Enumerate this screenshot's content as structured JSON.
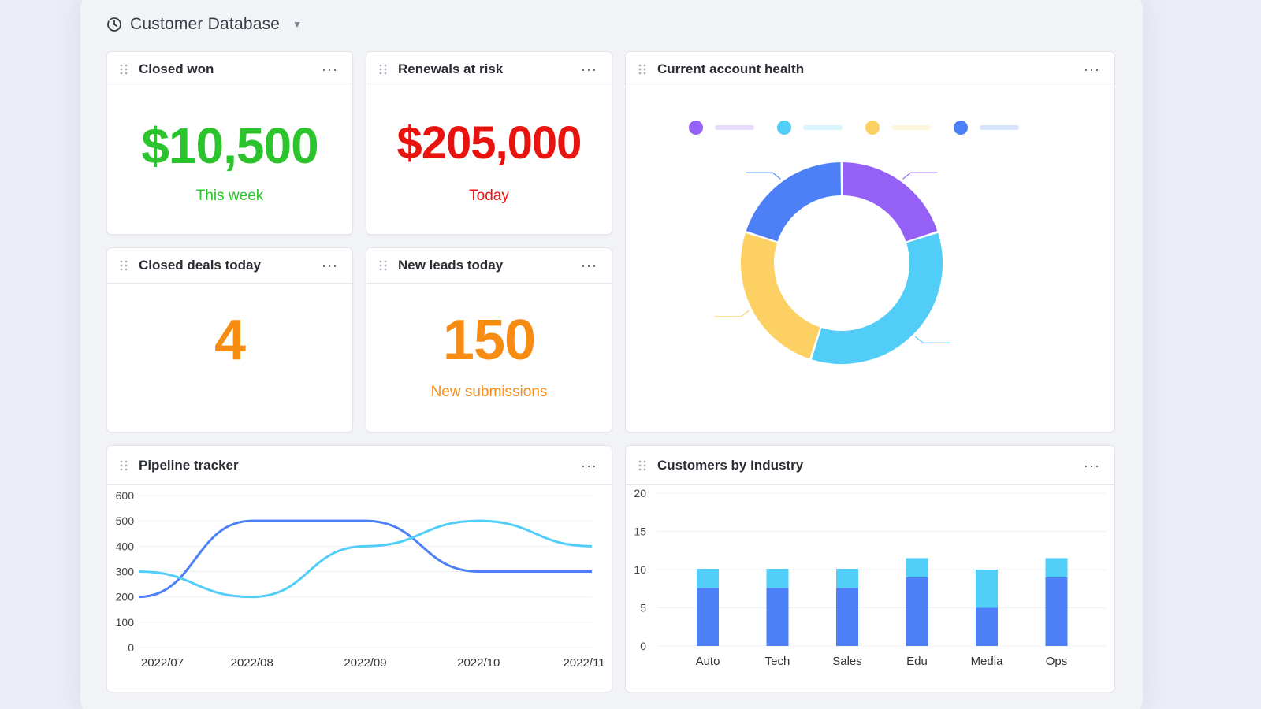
{
  "app": {
    "title": "Customer Database"
  },
  "colors": {
    "green": "#2cc42c",
    "red": "#e8130f",
    "orange": "#f78c12",
    "purple": "#9460f5",
    "cyan": "#52cdf8",
    "yellow": "#fcd063",
    "blue": "#4d80f7"
  },
  "cards": {
    "closed_won": {
      "title": "Closed won",
      "value": "$10,500",
      "sub": "This week"
    },
    "renewals": {
      "title": "Renewals at risk",
      "value": "$205,000",
      "sub": "Today"
    },
    "closed_deals": {
      "title": "Closed deals today",
      "value": "4"
    },
    "new_leads": {
      "title": "New leads today",
      "value": "150",
      "sub": "New submissions"
    },
    "health": {
      "title": "Current account health"
    },
    "pipeline": {
      "title": "Pipeline tracker"
    },
    "industry": {
      "title": "Customers by Industry"
    }
  },
  "more_label": "···",
  "chart_data": [
    {
      "id": "account-health",
      "type": "pie",
      "donut": true,
      "values": [
        20,
        35,
        25,
        20
      ],
      "colors": [
        "#9460f5",
        "#52cdf8",
        "#fcd063",
        "#4d80f7"
      ],
      "legend_colors": [
        "#9460f5",
        "#52cdf8",
        "#fcd063",
        "#4d80f7"
      ],
      "legend_placement": "top"
    },
    {
      "id": "pipeline",
      "type": "line",
      "x": [
        "2022/07",
        "2022/08",
        "2022/09",
        "2022/10",
        "2022/11"
      ],
      "ylim": [
        0,
        600
      ],
      "yticks": [
        "600",
        "500",
        "400",
        "300",
        "200",
        "100",
        "0"
      ],
      "series": [
        {
          "values": [
            200,
            500,
            500,
            300,
            300
          ],
          "color": "#4d80f7"
        },
        {
          "values": [
            300,
            200,
            400,
            500,
            400
          ],
          "color": "#52cdf8"
        }
      ],
      "grid": true
    },
    {
      "id": "industry",
      "type": "bar",
      "stacked": true,
      "categories": [
        "Auto",
        "Tech",
        "Sales",
        "Edu",
        "Media",
        "Ops"
      ],
      "ylim": [
        0,
        20
      ],
      "yticks": [
        "20",
        "15",
        "10",
        "5",
        "0"
      ],
      "series": [
        {
          "values": [
            7.6,
            7.6,
            7.6,
            9,
            5,
            9
          ],
          "color": "#4d80f7"
        },
        {
          "values": [
            2.5,
            2.5,
            2.5,
            2.5,
            5,
            2.5
          ],
          "color": "#52cdf8"
        }
      ],
      "grid": true
    }
  ]
}
